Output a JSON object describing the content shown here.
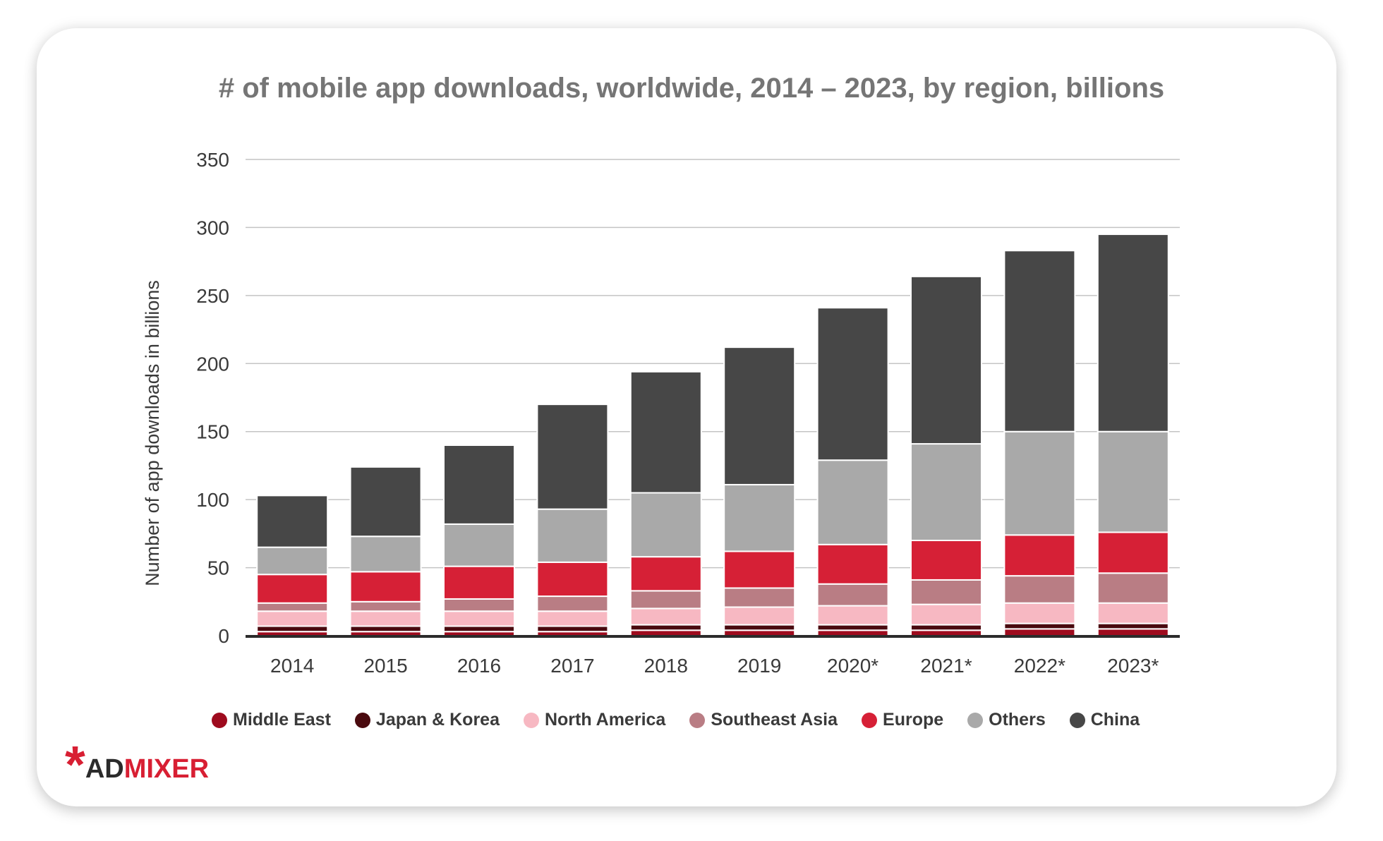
{
  "chart_data": {
    "type": "bar",
    "stacked": true,
    "title": "# of mobile app downloads, worldwide, 2014 – 2023, by region, billions",
    "xlabel": "",
    "ylabel": "Number of app downloads in billions",
    "ylim": [
      0,
      350
    ],
    "yticks": [
      0,
      50,
      100,
      150,
      200,
      250,
      300,
      350
    ],
    "grid": true,
    "legend_position": "bottom",
    "categories": [
      "2014",
      "2015",
      "2016",
      "2017",
      "2018",
      "2019",
      "2020*",
      "2021*",
      "2022*",
      "2023*"
    ],
    "series": [
      {
        "name": "Middle East",
        "color": "#9e0b1e",
        "values": [
          3,
          3,
          3,
          3,
          4,
          4,
          4,
          4,
          5,
          5
        ]
      },
      {
        "name": "Japan & Korea",
        "color": "#4a0a0f",
        "values": [
          4,
          4,
          4,
          4,
          4,
          4,
          4,
          4,
          4,
          4
        ]
      },
      {
        "name": "North America",
        "color": "#f7b8c2",
        "values": [
          11,
          11,
          11,
          11,
          12,
          13,
          14,
          15,
          15,
          15
        ]
      },
      {
        "name": "Southeast Asia",
        "color": "#b97d84",
        "values": [
          6,
          7,
          9,
          11,
          13,
          14,
          16,
          18,
          20,
          22
        ]
      },
      {
        "name": "Europe",
        "color": "#d62036",
        "values": [
          21,
          22,
          24,
          25,
          25,
          27,
          29,
          29,
          30,
          30
        ]
      },
      {
        "name": "Others",
        "color": "#a9a9a9",
        "values": [
          20,
          26,
          31,
          39,
          47,
          49,
          62,
          71,
          76,
          74
        ]
      },
      {
        "name": "China",
        "color": "#474747",
        "values": [
          38,
          51,
          58,
          77,
          89,
          101,
          112,
          123,
          133,
          145
        ]
      }
    ]
  },
  "brand": {
    "name": "ADMIXER",
    "prefix": "AD",
    "suffix": "MIXER",
    "accent_color": "#d81f33",
    "dark_color": "#2b2b2b"
  }
}
